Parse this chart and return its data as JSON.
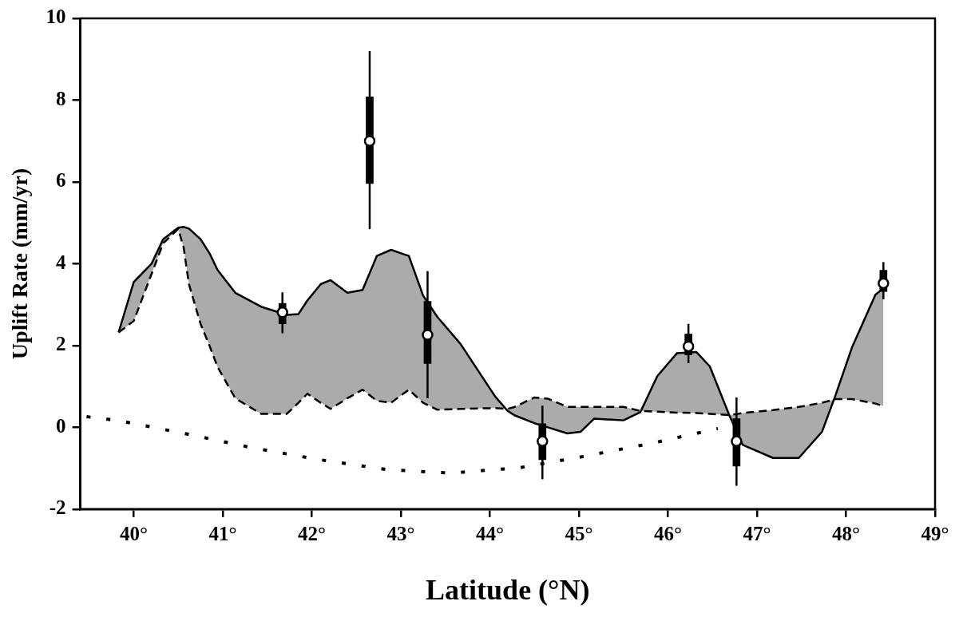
{
  "chart_data": {
    "type": "line",
    "xlabel": "Latitude (°N)",
    "ylabel": "Uplift Rate (mm/yr)",
    "xlim": [
      39.4,
      49
    ],
    "xticks": [
      {
        "value": 40,
        "label": "40°"
      },
      {
        "value": 41,
        "label": "41°"
      },
      {
        "value": 42,
        "label": "42°"
      },
      {
        "value": 43,
        "label": "43°"
      },
      {
        "value": 44,
        "label": "44°"
      },
      {
        "value": 45,
        "label": "45°"
      },
      {
        "value": 46,
        "label": "46°"
      },
      {
        "value": 47,
        "label": "47°"
      },
      {
        "value": 48,
        "label": "48°"
      },
      {
        "value": 49,
        "label": "49°"
      }
    ],
    "ylim": [
      -2,
      10
    ],
    "yticks": [
      -2,
      0,
      2,
      4,
      6,
      8,
      10
    ],
    "grid": false,
    "legend": false,
    "series": [
      {
        "type": "line",
        "color": "#000000",
        "line_style": "solid",
        "x": [
          39.83,
          40.0,
          40.2,
          40.33,
          40.5,
          40.56,
          40.62,
          40.75,
          40.85,
          40.94,
          41.14,
          41.43,
          41.72,
          41.85,
          41.95,
          42.1,
          42.21,
          42.4,
          42.57,
          42.73,
          42.89,
          43.09,
          43.25,
          43.41,
          43.67,
          44.06,
          44.2,
          44.28,
          44.5,
          44.65,
          44.87,
          45.02,
          45.17,
          45.5,
          45.69,
          45.88,
          46.1,
          46.32,
          46.47,
          46.69,
          46.84,
          47.18,
          47.47,
          47.73,
          47.88,
          48.07,
          48.33,
          48.42
        ],
        "values": [
          2.32,
          3.55,
          4.0,
          4.6,
          4.88,
          4.9,
          4.86,
          4.6,
          4.26,
          3.85,
          3.29,
          2.95,
          2.75,
          2.77,
          3.1,
          3.5,
          3.6,
          3.29,
          3.36,
          4.19,
          4.34,
          4.19,
          3.22,
          2.7,
          2.04,
          0.75,
          0.4,
          0.29,
          0.1,
          0.0,
          -0.15,
          -0.11,
          0.21,
          0.17,
          0.37,
          1.25,
          1.81,
          1.84,
          1.49,
          0.29,
          -0.43,
          -0.75,
          -0.75,
          -0.11,
          0.77,
          1.97,
          3.24,
          3.4
        ],
        "lower": [
          2.32,
          2.6,
          3.75,
          4.5,
          4.85,
          4.4,
          3.5,
          2.53,
          2.0,
          1.48,
          0.71,
          0.33,
          0.33,
          0.6,
          0.82,
          0.6,
          0.45,
          0.71,
          0.92,
          0.65,
          0.6,
          0.92,
          0.6,
          0.43,
          0.45,
          0.47,
          0.45,
          0.5,
          0.73,
          0.7,
          0.5,
          0.5,
          0.5,
          0.5,
          0.4,
          0.38,
          0.36,
          0.35,
          0.33,
          0.3,
          0.35,
          0.42,
          0.5,
          0.6,
          0.69,
          0.69,
          0.58,
          0.52
        ],
        "upper": [
          2.32,
          3.55,
          4.0,
          4.6,
          4.88,
          4.9,
          4.86,
          4.6,
          4.26,
          3.85,
          3.29,
          2.95,
          2.75,
          2.77,
          3.1,
          3.5,
          3.6,
          3.29,
          3.36,
          4.19,
          4.34,
          4.19,
          3.22,
          2.7,
          2.04,
          0.75,
          0.4,
          0.29,
          0.1,
          0.0,
          -0.15,
          -0.11,
          0.21,
          0.17,
          0.37,
          1.25,
          1.81,
          1.84,
          1.49,
          0.29,
          -0.43,
          -0.75,
          -0.75,
          -0.11,
          0.77,
          1.97,
          3.24,
          3.4
        ]
      },
      {
        "type": "line",
        "color": "#000000",
        "line_style": "dashed",
        "x": [
          39.83,
          40.0,
          40.2,
          40.33,
          40.5,
          40.56,
          40.62,
          40.75,
          40.85,
          40.94,
          41.14,
          41.43,
          41.72,
          41.85,
          41.95,
          42.1,
          42.21,
          42.4,
          42.57,
          42.73,
          42.89,
          43.09,
          43.25,
          43.41,
          43.67,
          44.06,
          44.2,
          44.28,
          44.5,
          44.65,
          44.87,
          45.02,
          45.17,
          45.5,
          45.69,
          45.88,
          46.1,
          46.32,
          46.47,
          46.69,
          46.84,
          47.18,
          47.47,
          47.73,
          47.88,
          48.07,
          48.33,
          48.42
        ],
        "values": [
          2.32,
          2.6,
          3.75,
          4.5,
          4.85,
          4.4,
          3.5,
          2.53,
          2.0,
          1.48,
          0.71,
          0.33,
          0.33,
          0.6,
          0.82,
          0.6,
          0.45,
          0.71,
          0.92,
          0.65,
          0.6,
          0.92,
          0.6,
          0.43,
          0.45,
          0.47,
          0.45,
          0.5,
          0.73,
          0.7,
          0.5,
          0.5,
          0.5,
          0.5,
          0.4,
          0.38,
          0.36,
          0.35,
          0.33,
          0.3,
          0.35,
          0.42,
          0.5,
          0.6,
          0.69,
          0.69,
          0.58,
          0.52
        ]
      },
      {
        "type": "line",
        "color": "#000000",
        "line_style": "dotted",
        "x": [
          39.47,
          39.84,
          40.59,
          41.33,
          42.08,
          42.83,
          43.55,
          44.33,
          45.06,
          45.82,
          46.56
        ],
        "values": [
          0.26,
          0.16,
          -0.16,
          -0.5,
          -0.79,
          -1.03,
          -1.12,
          -0.99,
          -0.71,
          -0.39,
          -0.03
        ]
      },
      {
        "type": "box",
        "color": "#000000",
        "marker": "circle",
        "x": [
          41.67,
          42.65,
          43.3,
          44.59,
          46.23,
          46.77,
          48.42
        ],
        "boxes": [
          {
            "low": 2.3,
            "q1": 2.53,
            "median": 2.81,
            "q3": 3.03,
            "high": 3.3
          },
          {
            "low": 4.85,
            "q1": 5.96,
            "median": 7.0,
            "q3": 8.08,
            "high": 9.2
          },
          {
            "low": 0.71,
            "q1": 1.56,
            "median": 2.26,
            "q3": 3.08,
            "high": 3.82
          },
          {
            "low": -1.27,
            "q1": -0.79,
            "median": -0.34,
            "q3": 0.09,
            "high": 0.53
          },
          {
            "low": 1.57,
            "q1": 1.77,
            "median": 1.98,
            "q3": 2.28,
            "high": 2.53
          },
          {
            "low": -1.43,
            "q1": -0.95,
            "median": -0.34,
            "q3": 0.21,
            "high": 0.73
          },
          {
            "low": 3.13,
            "q1": 3.32,
            "median": 3.52,
            "q3": 3.84,
            "high": 4.04
          }
        ]
      }
    ]
  }
}
